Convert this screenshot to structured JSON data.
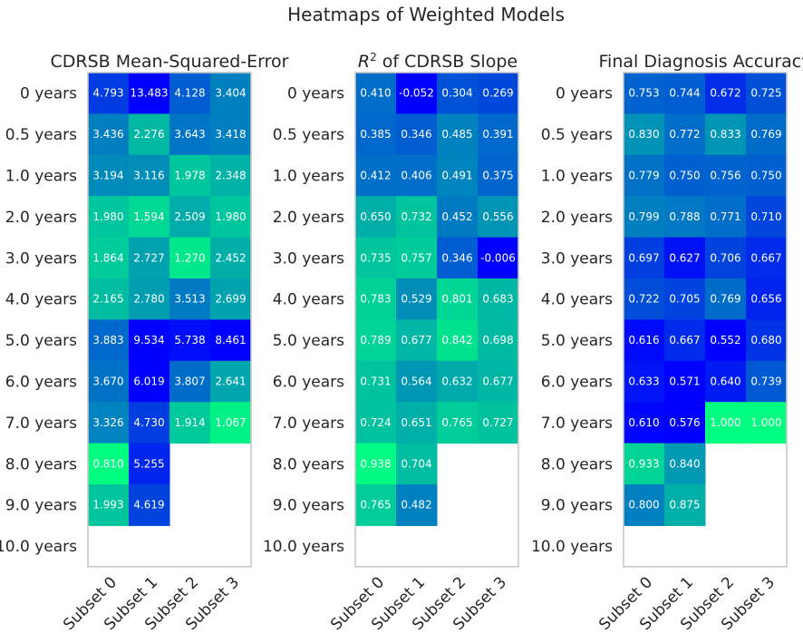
{
  "suptitle": "Heatmaps of Weighted Models",
  "chart_data": [
    {
      "type": "heatmap",
      "title": "CDRSB Mean-Squared-Error",
      "rows": [
        "0 years",
        "0.5 years",
        "1.0 years",
        "2.0 years",
        "3.0 years",
        "4.0 years",
        "5.0 years",
        "6.0 years",
        "7.0 years",
        "8.0 years",
        "9.0 years",
        "10.0 years"
      ],
      "cols": [
        "Subset 0",
        "Subset 1",
        "Subset 2",
        "Subset 3"
      ],
      "values": [
        [
          4.793,
          13.483,
          4.128,
          3.404
        ],
        [
          3.436,
          2.276,
          3.643,
          3.418
        ],
        [
          3.194,
          3.116,
          1.978,
          2.348
        ],
        [
          1.98,
          1.594,
          2.509,
          1.98
        ],
        [
          1.864,
          2.727,
          1.27,
          2.452
        ],
        [
          2.165,
          2.78,
          3.513,
          2.699
        ],
        [
          3.883,
          9.534,
          5.738,
          8.461
        ],
        [
          3.67,
          6.019,
          3.807,
          2.641
        ],
        [
          3.326,
          4.73,
          1.914,
          1.067
        ],
        [
          0.81,
          5.255,
          null,
          null
        ],
        [
          1.993,
          4.619,
          null,
          null
        ],
        [
          null,
          null,
          null,
          null
        ]
      ],
      "labels": [
        [
          "4.793",
          "13.483",
          "4.128",
          "3.404"
        ],
        [
          "3.436",
          "2.276",
          "3.643",
          "3.418"
        ],
        [
          "3.194",
          "3.116",
          "1.978",
          "2.348"
        ],
        [
          "1.980",
          "1.594",
          "2.509",
          "1.980"
        ],
        [
          "1.864",
          "2.727",
          "1.270",
          "2.452"
        ],
        [
          "2.165",
          "2.780",
          "3.513",
          "2.699"
        ],
        [
          "3.883",
          "9.534",
          "5.738",
          "8.461"
        ],
        [
          "3.670",
          "6.019",
          "3.807",
          "2.641"
        ],
        [
          "3.326",
          "4.730",
          "1.914",
          "1.067"
        ],
        [
          "0.810",
          "5.255",
          "",
          ""
        ],
        [
          "1.993",
          "4.619",
          "",
          ""
        ],
        [
          "",
          "",
          "",
          ""
        ]
      ],
      "vmin": 0.81,
      "vmax": 6.0,
      "colormap_low": "#00ff80",
      "colormap_high": "#0000ff"
    },
    {
      "type": "heatmap",
      "title": "R² of CDRSB Slope",
      "title_main": "R",
      "title_sup": "2",
      "title_rest": " of CDRSB Slope",
      "rows": [
        "0 years",
        "0.5 years",
        "1.0 years",
        "2.0 years",
        "3.0 years",
        "4.0 years",
        "5.0 years",
        "6.0 years",
        "7.0 years",
        "8.0 years",
        "9.0 years",
        "10.0 years"
      ],
      "cols": [
        "Subset 0",
        "Subset 1",
        "Subset 2",
        "Subset 3"
      ],
      "values": [
        [
          0.41,
          -0.052,
          0.304,
          0.269
        ],
        [
          0.385,
          0.346,
          0.485,
          0.391
        ],
        [
          0.412,
          0.406,
          0.491,
          0.375
        ],
        [
          0.65,
          0.732,
          0.452,
          0.556
        ],
        [
          0.735,
          0.757,
          0.346,
          -0.006
        ],
        [
          0.783,
          0.529,
          0.801,
          0.683
        ],
        [
          0.789,
          0.677,
          0.842,
          0.698
        ],
        [
          0.731,
          0.564,
          0.632,
          0.677
        ],
        [
          0.724,
          0.651,
          0.765,
          0.727
        ],
        [
          0.938,
          0.704,
          null,
          null
        ],
        [
          0.765,
          0.482,
          null,
          null
        ],
        [
          null,
          null,
          null,
          null
        ]
      ],
      "labels": [
        [
          "0.410",
          "-0.052",
          "0.304",
          "0.269"
        ],
        [
          "0.385",
          "0.346",
          "0.485",
          "0.391"
        ],
        [
          "0.412",
          "0.406",
          "0.491",
          "0.375"
        ],
        [
          "0.650",
          "0.732",
          "0.452",
          "0.556"
        ],
        [
          "0.735",
          "0.757",
          "0.346",
          "-0.006"
        ],
        [
          "0.783",
          "0.529",
          "0.801",
          "0.683"
        ],
        [
          "0.789",
          "0.677",
          "0.842",
          "0.698"
        ],
        [
          "0.731",
          "0.564",
          "0.632",
          "0.677"
        ],
        [
          "0.724",
          "0.651",
          "0.765",
          "0.727"
        ],
        [
          "0.938",
          "0.704",
          "",
          ""
        ],
        [
          "0.765",
          "0.482",
          "",
          ""
        ],
        [
          "",
          "",
          "",
          ""
        ]
      ],
      "vmin": 0.0,
      "vmax": 0.95,
      "colormap_low": "#0000ff",
      "colormap_high": "#00ff80"
    },
    {
      "type": "heatmap",
      "title": "Final Diagnosis Accuracy",
      "rows": [
        "0 years",
        "0.5 years",
        "1.0 years",
        "2.0 years",
        "3.0 years",
        "4.0 years",
        "5.0 years",
        "6.0 years",
        "7.0 years",
        "8.0 years",
        "9.0 years",
        "10.0 years"
      ],
      "cols": [
        "Subset 0",
        "Subset 1",
        "Subset 2",
        "Subset 3"
      ],
      "values": [
        [
          0.753,
          0.744,
          0.672,
          0.725
        ],
        [
          0.83,
          0.772,
          0.833,
          0.769
        ],
        [
          0.779,
          0.75,
          0.756,
          0.75
        ],
        [
          0.799,
          0.788,
          0.771,
          0.71
        ],
        [
          0.697,
          0.627,
          0.706,
          0.667
        ],
        [
          0.722,
          0.705,
          0.769,
          0.656
        ],
        [
          0.616,
          0.667,
          0.552,
          0.68
        ],
        [
          0.633,
          0.571,
          0.64,
          0.739
        ],
        [
          0.61,
          0.576,
          1.0,
          1.0
        ],
        [
          0.933,
          0.84,
          null,
          null
        ],
        [
          0.8,
          0.875,
          null,
          null
        ],
        [
          null,
          null,
          null,
          null
        ]
      ],
      "labels": [
        [
          "0.753",
          "0.744",
          "0.672",
          "0.725"
        ],
        [
          "0.830",
          "0.772",
          "0.833",
          "0.769"
        ],
        [
          "0.779",
          "0.750",
          "0.756",
          "0.750"
        ],
        [
          "0.799",
          "0.788",
          "0.771",
          "0.710"
        ],
        [
          "0.697",
          "0.627",
          "0.706",
          "0.667"
        ],
        [
          "0.722",
          "0.705",
          "0.769",
          "0.656"
        ],
        [
          "0.616",
          "0.667",
          "0.552",
          "0.680"
        ],
        [
          "0.633",
          "0.571",
          "0.640",
          "0.739"
        ],
        [
          "0.610",
          "0.576",
          "1.000",
          "1.000"
        ],
        [
          "0.933",
          "0.840",
          "",
          ""
        ],
        [
          "0.800",
          "0.875",
          "",
          ""
        ],
        [
          "",
          "",
          "",
          ""
        ]
      ],
      "vmin": 0.6,
      "vmax": 1.0,
      "colormap_low": "#0000ff",
      "colormap_high": "#00ff80"
    }
  ]
}
